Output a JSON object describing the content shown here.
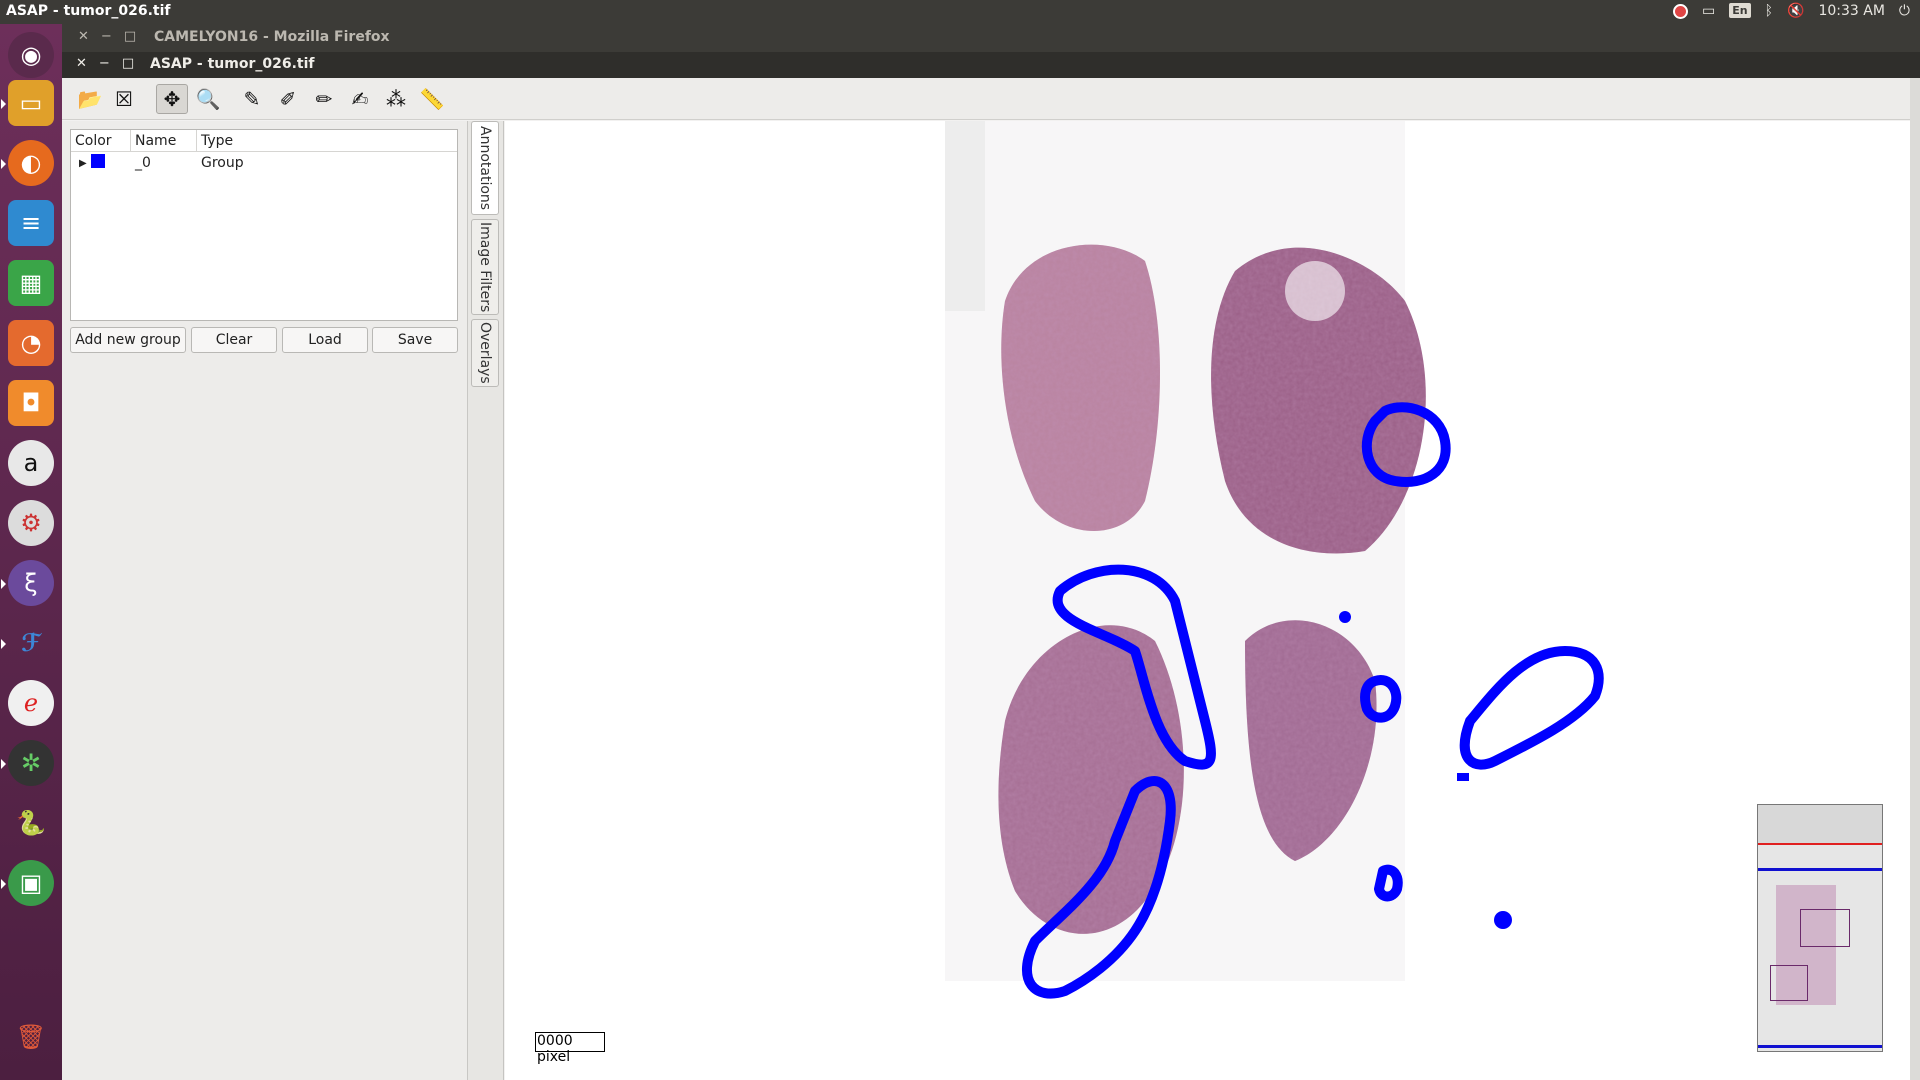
{
  "top_panel": {
    "title": "ASAP - tumor_026.tif",
    "keyboard": "En",
    "time": "10:33 AM"
  },
  "launcher": {
    "items": [
      "ubuntu-dash-icon",
      "files-icon",
      "firefox-icon",
      "writer-icon",
      "calc-icon",
      "impress-icon",
      "software-center-icon",
      "amazon-icon",
      "settings-icon",
      "emacs-icon",
      "fiji-icon",
      "pen-app-icon",
      "network-app-icon",
      "python-icon",
      "image-viewer-icon",
      "trash-icon"
    ]
  },
  "firefox_window": {
    "title": "CAMELYON16 - Mozilla Firefox"
  },
  "asap_window": {
    "title": "ASAP - tumor_026.tif"
  },
  "annotation_panel": {
    "columns": [
      "Color",
      "Name",
      "Type"
    ],
    "rows": [
      {
        "color": "#0000ff",
        "name": "_0",
        "type": "Group"
      }
    ],
    "buttons": {
      "add_group": "Add new group",
      "clear": "Clear",
      "load": "Load",
      "save": "Save"
    }
  },
  "side_tabs": [
    "Annotations",
    "Image Filters",
    "Overlays"
  ],
  "viewer": {
    "scale_text": "0000 pixel",
    "annotation_color": "#0000ff"
  }
}
